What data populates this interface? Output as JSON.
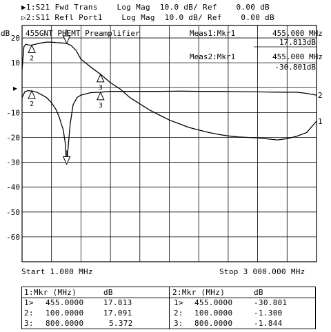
{
  "header": {
    "line1": "▶1:S21 Fwd Trans    Log Mag  10.0 dB/ Ref    0.00 dB",
    "line2": "▷2:S11 Refl Port1    Log Mag  10.0 dB/ Ref    0.00 dB"
  },
  "chart_data": {
    "type": "line",
    "title": "455GNT PHEMT Preamplifier",
    "ylabel": "dB",
    "ylim": [
      -70,
      25
    ],
    "xlim": [
      1.0,
      3000.0
    ],
    "x_unit": "MHz",
    "y_ticks": [
      20,
      10,
      0,
      -10,
      -20,
      -30,
      -40,
      -50,
      -60
    ],
    "y_tick_labels": [
      "20",
      "10",
      "",
      "-10",
      "-20",
      "-30",
      "-40",
      "-50",
      "-60"
    ],
    "start_label": "Start 1.000 MHz",
    "stop_label": "Stop 3 000.000 MHz",
    "reference_marker": "▶",
    "series": [
      {
        "name": "1",
        "x": [
          1,
          20,
          40,
          70,
          100,
          150,
          200,
          250,
          300,
          350,
          400,
          455,
          500,
          550,
          600,
          700,
          800,
          900,
          1000,
          1100,
          1200,
          1300,
          1400,
          1500,
          1600,
          1700,
          1800,
          1900,
          2000,
          2100,
          2200,
          2300,
          2400,
          2500,
          2600,
          2700,
          2800,
          2900,
          3000
        ],
        "y": [
          7.5,
          16.5,
          17.5,
          17.1,
          17.1,
          17.6,
          18.0,
          18.3,
          18.3,
          18.1,
          18.0,
          17.8,
          17.0,
          15.0,
          11.5,
          8.3,
          5.4,
          2.0,
          -0.5,
          -4.0,
          -6.5,
          -9.0,
          -11.0,
          -13.0,
          -14.5,
          -16.0,
          -17.0,
          -18.0,
          -18.8,
          -19.4,
          -19.8,
          -20.0,
          -20.2,
          -20.6,
          -21.0,
          -20.5,
          -19.5,
          -18.0,
          -13.5
        ]
      },
      {
        "name": "2",
        "x": [
          1,
          30,
          60,
          100,
          150,
          200,
          250,
          300,
          350,
          380,
          420,
          440,
          455,
          470,
          490,
          520,
          560,
          600,
          700,
          800,
          900,
          1000,
          1200,
          1400,
          1600,
          1800,
          2000,
          2200,
          2400,
          2600,
          2800,
          2900,
          3000
        ],
        "y": [
          -4.0,
          -1.6,
          -1.2,
          -1.3,
          -1.8,
          -2.8,
          -4.0,
          -6.0,
          -9.0,
          -12.0,
          -17.0,
          -22.0,
          -30.8,
          -24.0,
          -15.0,
          -7.0,
          -4.0,
          -3.0,
          -2.0,
          -1.8,
          -1.5,
          -1.5,
          -1.5,
          -1.5,
          -1.4,
          -1.5,
          -1.5,
          -1.6,
          -1.7,
          -1.8,
          -1.8,
          -2.3,
          -3.0
        ]
      }
    ],
    "markers": [
      {
        "series": "1",
        "label": "1",
        "x": 455,
        "y": 17.813,
        "active": true
      },
      {
        "series": "1",
        "label": "2",
        "x": 100,
        "y": 17.091,
        "active": false
      },
      {
        "series": "1",
        "label": "3",
        "x": 800,
        "y": 5.372,
        "active": false
      },
      {
        "series": "2",
        "label": "1",
        "x": 455,
        "y": -30.801,
        "active": true
      },
      {
        "series": "2",
        "label": "2",
        "x": 100,
        "y": -1.3,
        "active": false
      },
      {
        "series": "2",
        "label": "3",
        "x": 800,
        "y": -1.844,
        "active": false
      }
    ],
    "meas": [
      {
        "label": "Meas1:Mkr1",
        "freq": "455.000 MHz",
        "value": "17.813dB"
      },
      {
        "label": "Meas2:Mkr1",
        "freq": "455.000 MHz",
        "value": "-30.801dB"
      }
    ]
  },
  "marker_table": {
    "left": {
      "header": [
        "1:Mkr (MHz)",
        "dB"
      ],
      "rows": [
        [
          "1>",
          "455.0000",
          "17.813"
        ],
        [
          "2:",
          "100.0000",
          "17.091"
        ],
        [
          "3:",
          "800.0000",
          "5.372"
        ]
      ]
    },
    "right": {
      "header": [
        "2:Mkr (MHz)",
        "dB"
      ],
      "rows": [
        [
          "1>",
          "455.0000",
          "-30.801"
        ],
        [
          "2:",
          "100.0000",
          "-1.300"
        ],
        [
          "3:",
          "800.0000",
          "-1.844"
        ]
      ]
    }
  }
}
